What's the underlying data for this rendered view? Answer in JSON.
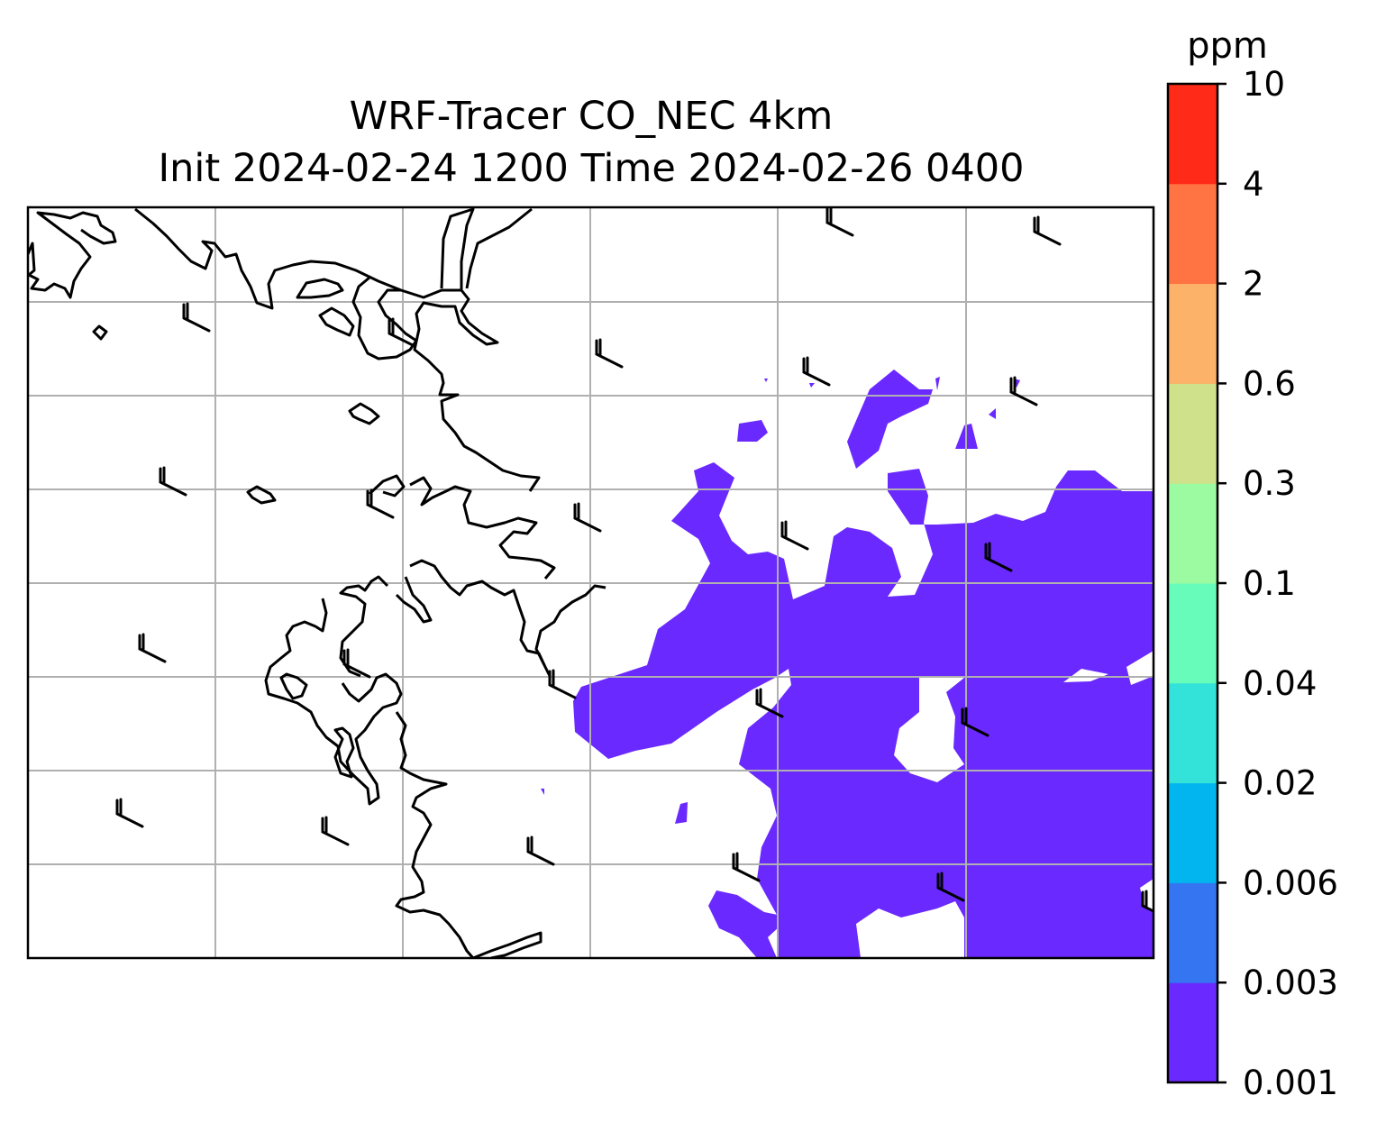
{
  "title_line1": "WRF-Tracer CO_NEC 4km",
  "title_line2": "Init 2024-02-24 1200 Time 2024-02-26 0400",
  "colorbar": {
    "unit": "ppm",
    "levels": [
      "0.001",
      "0.003",
      "0.006",
      "0.02",
      "0.04",
      "0.1",
      "0.3",
      "0.6",
      "2",
      "4",
      "10"
    ],
    "colors": [
      "#6a29ff",
      "#3575f2",
      "#03b5ef",
      "#33e2d8",
      "#68fcbb",
      "#9cfba0",
      "#cfe18a",
      "#fdb26a",
      "#ff7442",
      "#ff2a17"
    ]
  },
  "map": {
    "shading_color": "#6a29ff",
    "coastline_color": "#000000",
    "gridline_color": "#b0b0b0",
    "wind_barb_color": "#000000"
  }
}
